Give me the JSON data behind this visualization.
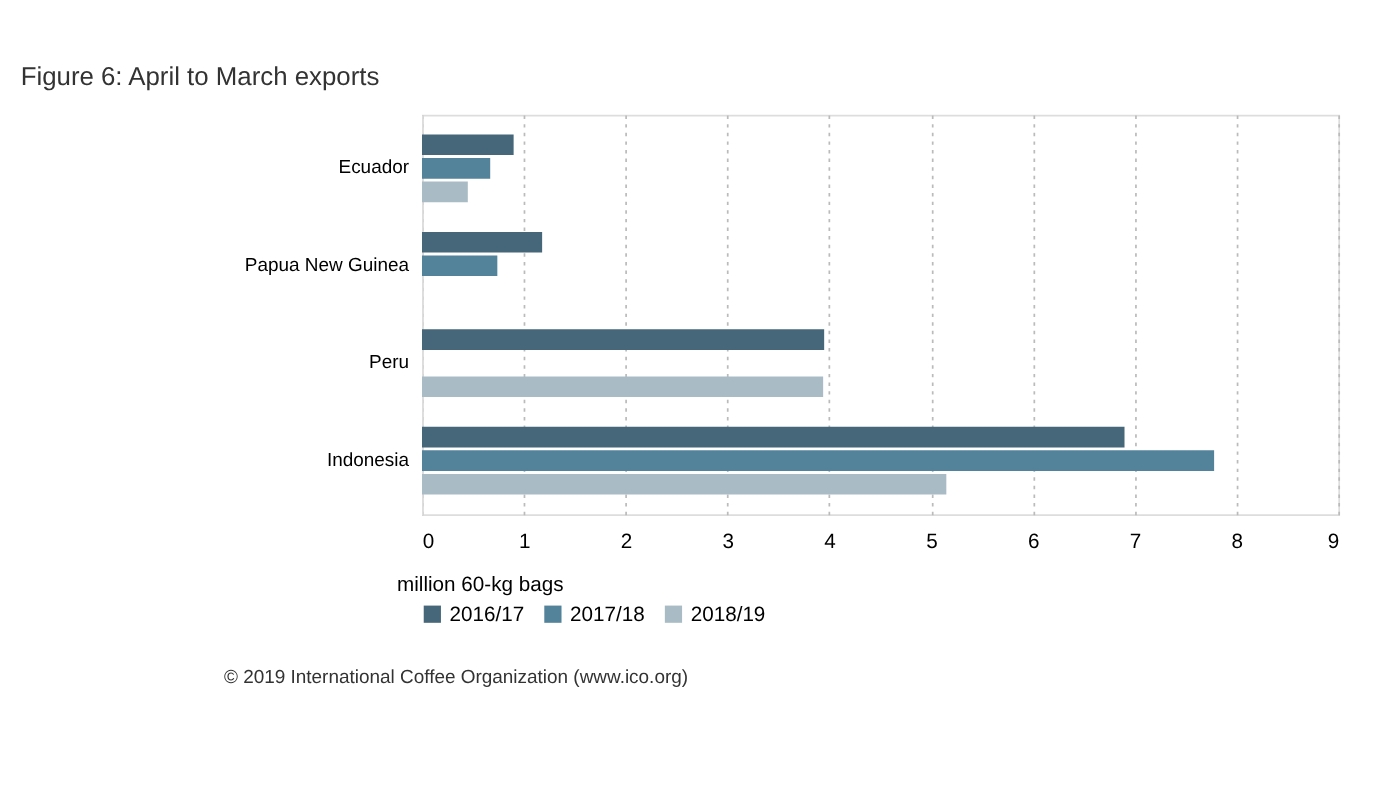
{
  "chart_data": {
    "type": "bar",
    "orientation": "horizontal",
    "title": "Figure 6: April to March exports",
    "xlabel": "million 60-kg bags",
    "categories": [
      "Ecuador",
      "Papua New Guinea",
      "Peru",
      "Indonesia"
    ],
    "series": [
      {
        "name": "2016/17",
        "color": "#46677a",
        "values": [
          0.9,
          1.18,
          3.95,
          6.9
        ]
      },
      {
        "name": "2017/18",
        "color": "#53829b",
        "values": [
          0.67,
          0.74,
          null,
          7.78
        ]
      },
      {
        "name": "2018/19",
        "color": "#a9bcc5",
        "values": [
          0.45,
          null,
          3.94,
          5.15
        ]
      }
    ],
    "xlim": [
      0,
      9
    ],
    "xticks": [
      0,
      1,
      2,
      3,
      4,
      5,
      6,
      7,
      8,
      9
    ],
    "grid": "x",
    "legend": "bottom",
    "annotations": [
      "© 2019 International Coffee Organization (www.ico.org)"
    ]
  }
}
